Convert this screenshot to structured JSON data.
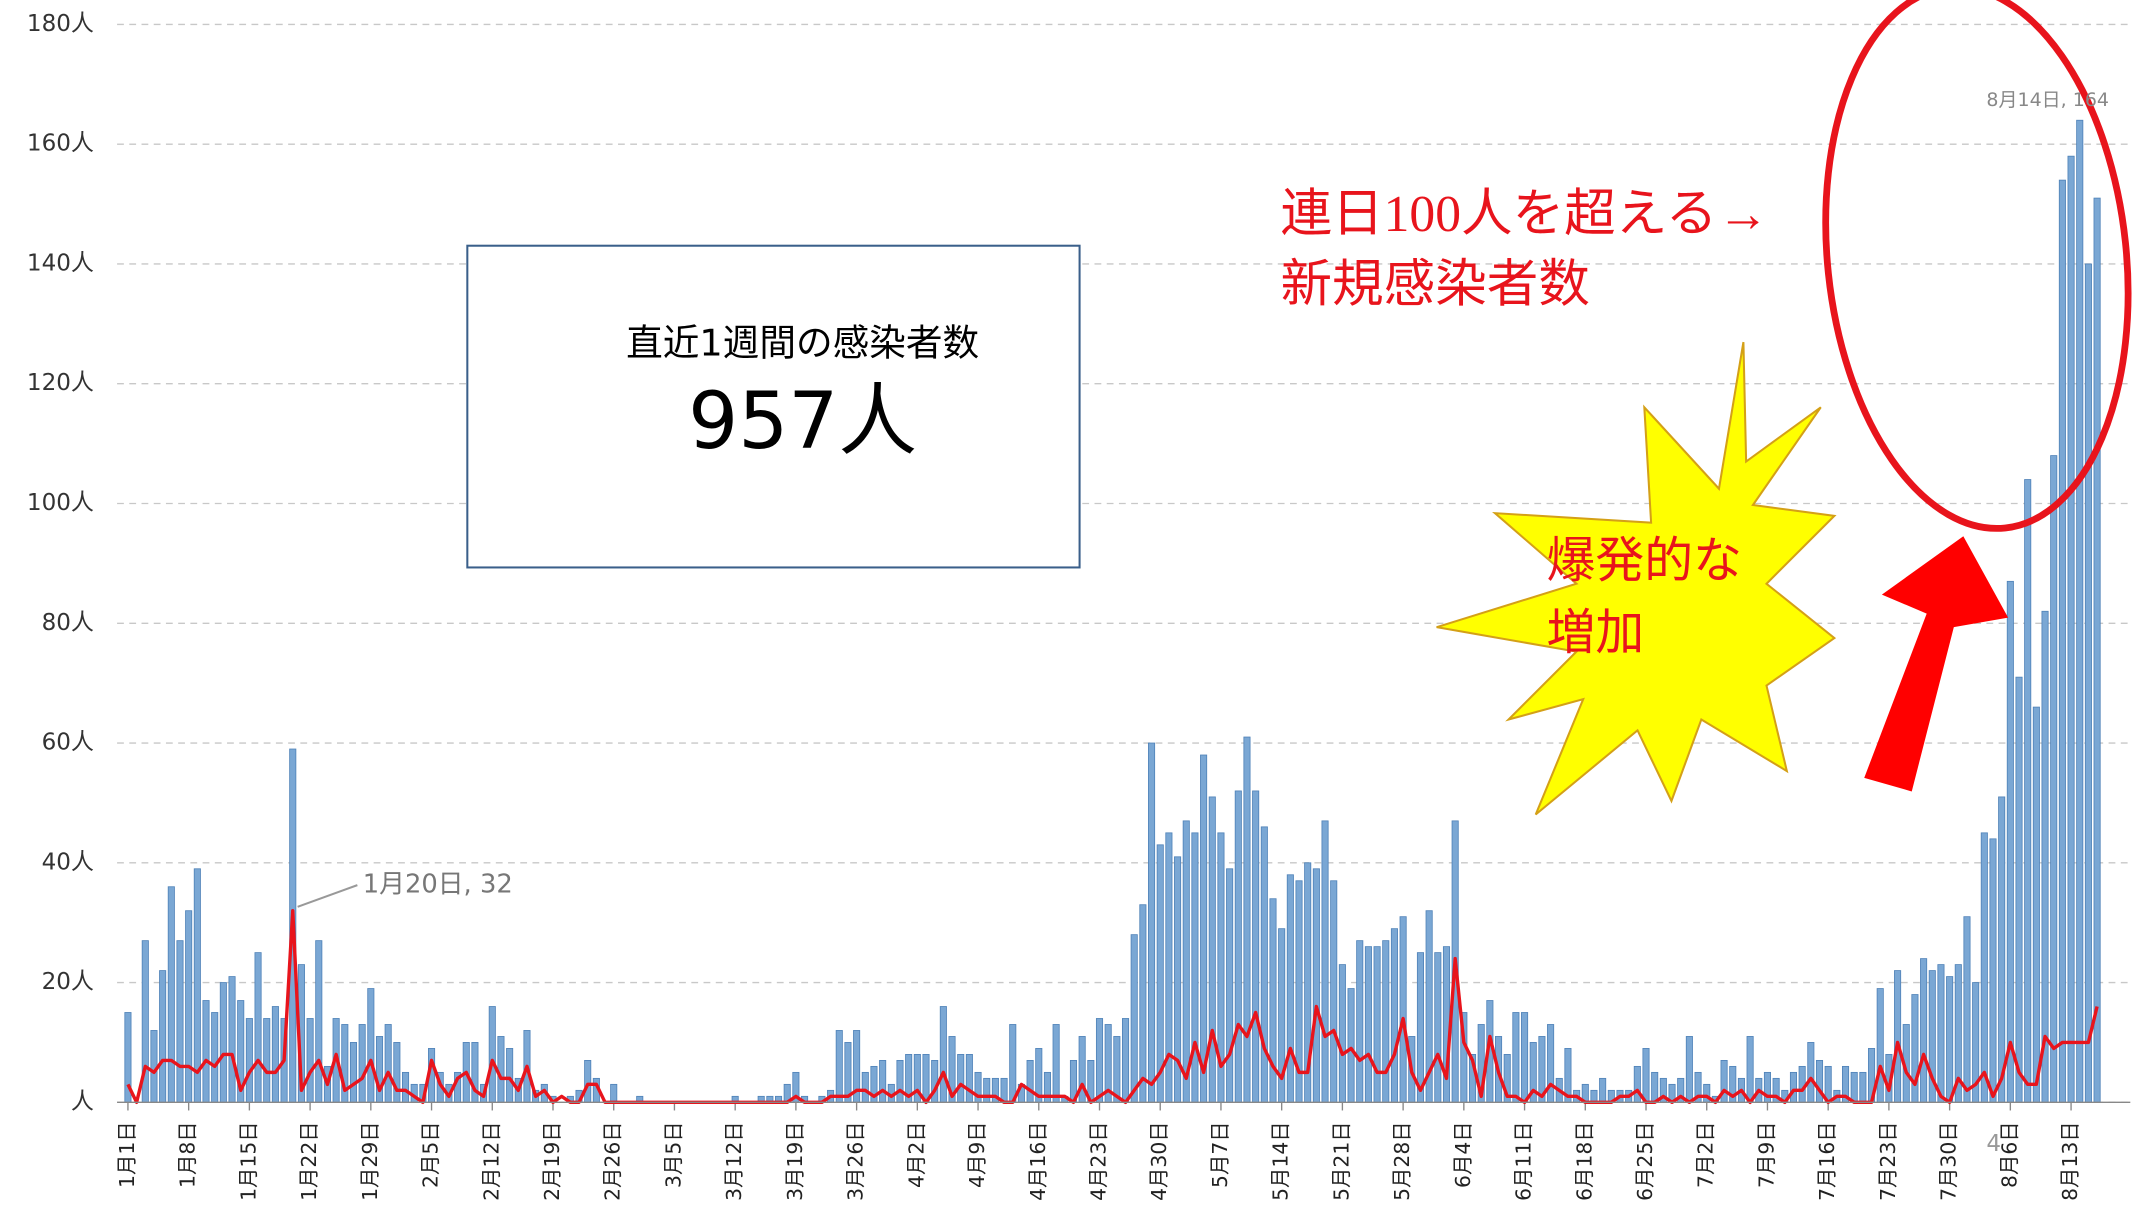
{
  "chart_data": {
    "type": "bar",
    "categories": [
      "1月1日",
      null,
      null,
      null,
      null,
      null,
      null,
      "1月8日",
      null,
      null,
      null,
      null,
      null,
      null,
      "1月15日",
      null,
      null,
      null,
      null,
      null,
      null,
      "1月22日",
      null,
      null,
      null,
      null,
      null,
      null,
      "1月29日",
      null,
      null,
      null,
      null,
      null,
      null,
      "2月5日",
      null,
      null,
      null,
      null,
      null,
      null,
      "2月12日",
      null,
      null,
      null,
      null,
      null,
      null,
      "2月19日",
      null,
      null,
      null,
      null,
      null,
      null,
      "2月26日",
      null,
      null,
      null,
      null,
      null,
      null,
      "3月5日",
      null,
      null,
      null,
      null,
      null,
      null,
      "3月12日",
      null,
      null,
      null,
      null,
      null,
      null,
      "3月19日",
      null,
      null,
      null,
      null,
      null,
      null,
      "3月26日",
      null,
      null,
      null,
      null,
      null,
      null,
      "4月2日",
      null,
      null,
      null,
      null,
      null,
      null,
      "4月9日",
      null,
      null,
      null,
      null,
      null,
      null,
      "4月16日",
      null,
      null,
      null,
      null,
      null,
      null,
      "4月23日",
      null,
      null,
      null,
      null,
      null,
      null,
      "4月30日",
      null,
      null,
      null,
      null,
      null,
      null,
      "5月7日",
      null,
      null,
      null,
      null,
      null,
      null,
      "5月14日",
      null,
      null,
      null,
      null,
      null,
      null,
      "5月21日",
      null,
      null,
      null,
      null,
      null,
      null,
      "5月28日",
      null,
      null,
      null,
      null,
      null,
      null,
      "6月4日",
      null,
      null,
      null,
      null,
      null,
      null,
      "6月11日",
      null,
      null,
      null,
      null,
      null,
      null,
      "6月18日",
      null,
      null,
      null,
      null,
      null,
      null,
      "6月25日",
      null,
      null,
      null,
      null,
      null,
      null,
      "7月2日",
      null,
      null,
      null,
      null,
      null,
      null,
      "7月9日",
      null,
      null,
      null,
      null,
      null,
      null,
      "7月16日",
      null,
      null,
      null,
      null,
      null,
      null,
      "7月23日",
      null,
      null,
      null,
      null,
      null,
      null,
      "7月30日",
      null,
      null,
      null,
      null,
      null,
      null,
      "8月6日",
      null,
      null,
      null,
      null,
      null,
      null,
      "8月13日",
      null,
      null,
      null
    ],
    "series": [
      {
        "type": "bar",
        "color": "#7aa7d4",
        "values": [
          15,
          0,
          27,
          12,
          22,
          36,
          27,
          32,
          39,
          17,
          15,
          20,
          21,
          17,
          14,
          25,
          14,
          16,
          14,
          59,
          23,
          14,
          27,
          6,
          14,
          13,
          10,
          13,
          19,
          11,
          13,
          10,
          5,
          3,
          3,
          9,
          5,
          3,
          5,
          10,
          10,
          3,
          16,
          11,
          9,
          4,
          12,
          2,
          3,
          1,
          0,
          1,
          2,
          7,
          4,
          0,
          3,
          0,
          0,
          1,
          0,
          0,
          0,
          0,
          0,
          0,
          0,
          0,
          0,
          0,
          1,
          0,
          0,
          1,
          1,
          1,
          3,
          5,
          1,
          0,
          1,
          2,
          12,
          10,
          12,
          5,
          6,
          7,
          3,
          7,
          8,
          8,
          8,
          7,
          16,
          11,
          8,
          8,
          5,
          4,
          4,
          4,
          13,
          3,
          7,
          9,
          5,
          13,
          1,
          7,
          11,
          7,
          14,
          13,
          11,
          14,
          28,
          33,
          60,
          43,
          45,
          41,
          47,
          45,
          58,
          51,
          45,
          39,
          52,
          61,
          52,
          46,
          34,
          29,
          38,
          37,
          40,
          39,
          47,
          37,
          23,
          19,
          27,
          26,
          26,
          27,
          29,
          31,
          11,
          25,
          32,
          25,
          26,
          47,
          15,
          8,
          13,
          17,
          11,
          8,
          15,
          15,
          10,
          11,
          13,
          4,
          9,
          2,
          3,
          2,
          4,
          2,
          2,
          2,
          6,
          9,
          5,
          4,
          3,
          4,
          11,
          5,
          3,
          1,
          7,
          6,
          4,
          11,
          4,
          5,
          4,
          2,
          5,
          6,
          10,
          7,
          6,
          2,
          6,
          5,
          5,
          9,
          19,
          8,
          22,
          13,
          18,
          24,
          22,
          23,
          21,
          23,
          31,
          20,
          45,
          44,
          51,
          87,
          71,
          104,
          66,
          82,
          108,
          154,
          158,
          164,
          140,
          151
        ]
      },
      {
        "type": "line",
        "color": "#e8141c",
        "values": [
          3,
          0,
          6,
          5,
          7,
          7,
          6,
          6,
          5,
          7,
          6,
          8,
          8,
          2,
          5,
          7,
          5,
          5,
          7,
          32,
          2,
          5,
          7,
          3,
          8,
          2,
          3,
          4,
          7,
          2,
          5,
          2,
          2,
          1,
          0,
          7,
          3,
          1,
          4,
          5,
          2,
          1,
          7,
          4,
          4,
          2,
          6,
          1,
          2,
          0,
          1,
          0,
          0,
          3,
          3,
          0,
          0,
          0,
          0,
          0,
          0,
          0,
          0,
          0,
          0,
          0,
          0,
          0,
          0,
          0,
          0,
          0,
          0,
          0,
          0,
          0,
          0,
          1,
          0,
          0,
          0,
          1,
          1,
          1,
          2,
          2,
          1,
          2,
          1,
          2,
          1,
          2,
          0,
          2,
          5,
          1,
          3,
          2,
          1,
          1,
          1,
          0,
          0,
          3,
          2,
          1,
          1,
          1,
          1,
          0,
          3,
          0,
          1,
          2,
          1,
          0,
          2,
          4,
          3,
          5,
          8,
          7,
          4,
          10,
          5,
          12,
          6,
          8,
          13,
          11,
          15,
          9,
          6,
          4,
          9,
          5,
          5,
          16,
          11,
          12,
          8,
          9,
          7,
          8,
          5,
          5,
          8,
          14,
          5,
          2,
          5,
          8,
          4,
          24,
          10,
          7,
          1,
          11,
          5,
          1,
          1,
          0,
          2,
          1,
          3,
          2,
          1,
          1,
          0,
          0,
          0,
          0,
          1,
          1,
          2,
          0,
          0,
          1,
          0,
          1,
          0,
          1,
          1,
          0,
          2,
          1,
          2,
          0,
          2,
          1,
          1,
          0,
          2,
          2,
          4,
          2,
          0,
          1,
          1,
          0,
          0,
          0,
          6,
          2,
          10,
          5,
          3,
          8,
          4,
          1,
          0,
          4,
          2,
          3,
          5,
          1,
          4,
          10,
          5,
          3,
          3,
          11,
          9,
          10,
          10,
          10,
          10,
          16
        ]
      }
    ],
    "ylim": [
      0,
      180
    ],
    "yticks": [
      {
        "value": 0,
        "label": "人"
      },
      {
        "value": 20,
        "label": "20人"
      },
      {
        "value": 40,
        "label": "40人"
      },
      {
        "value": 60,
        "label": "60人"
      },
      {
        "value": 80,
        "label": "80人"
      },
      {
        "value": 100,
        "label": "100人"
      },
      {
        "value": 120,
        "label": "120人"
      },
      {
        "value": 140,
        "label": "140人"
      },
      {
        "value": 160,
        "label": "160人"
      },
      {
        "value": 180,
        "label": "180人"
      }
    ],
    "grid": true,
    "annotations": [
      "1月20日, 32",
      "8月14日, 164"
    ],
    "summary_box": {
      "label": "直近1週間の感染者数",
      "value": "957人"
    },
    "callouts": [
      "連日100人を超える→",
      "新規感染者数",
      "爆発的な",
      "増加"
    ],
    "page_number": "4"
  }
}
